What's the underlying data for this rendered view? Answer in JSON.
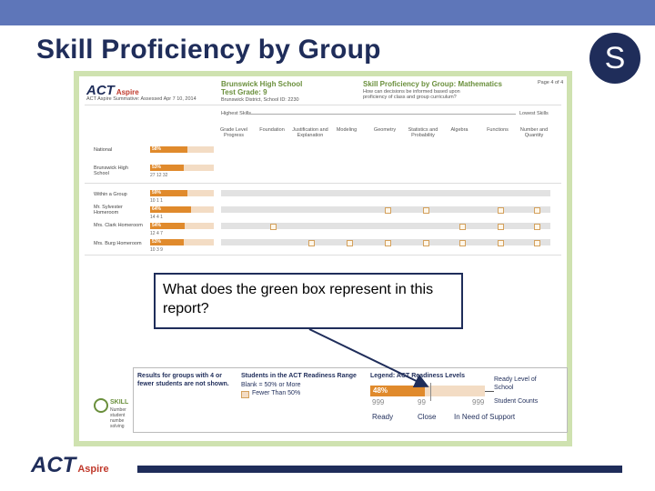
{
  "slide": {
    "title": "Skill Proficiency by Group",
    "badge_letter": "S"
  },
  "report": {
    "logo": "ACT",
    "logo_sub": "Aspire",
    "logo_line": "ACT Aspire Summative: Assessed Apr 7 10, 2014",
    "school_name": "Brunswick High School",
    "test_grade": "Test Grade: 9",
    "district_line": "Brunswick District, School ID: 2230",
    "report_title": "Skill Proficiency by Group: Mathematics",
    "report_subtitle": "How can decisions be informed based upon proficiency of class and group curriculum?",
    "page": "Page 4 of 4",
    "highest_skills": "Highest Skills",
    "lowest_skills": "Lowest Skills",
    "columns": [
      "Grade Level Progress",
      "Foundation",
      "Justification and Explanation",
      "Modeling",
      "Geometry",
      "Statistics and Probability",
      "Algebra",
      "Functions",
      "Number and Quantity"
    ],
    "rows": [
      {
        "label": "National",
        "pct": "58%",
        "level": 0.58,
        "counts": ""
      },
      {
        "label": "Brunswick High School",
        "pct": "53%",
        "level": 0.53,
        "counts": "27   12   32"
      },
      {
        "label": "Within a Group",
        "pct": "59%",
        "level": 0.59,
        "counts": "10   1   1"
      },
      {
        "label": "Mr. Sylvester Homeroom",
        "pct": "64%",
        "level": 0.64,
        "counts": "14   4   1"
      },
      {
        "label": "Mrs. Clark Homeroom",
        "pct": "54%",
        "level": 0.54,
        "counts": "12   4   7"
      },
      {
        "label": "Mrs. Burg Homeroom",
        "pct": "53%",
        "level": 0.53,
        "counts": "10   3   9"
      }
    ]
  },
  "callout": {
    "text": "What does the green box represent in this report?"
  },
  "legend": {
    "note": "Results for groups with 4 or fewer students are not shown.",
    "range_title": "Students in the ACT Readiness Range",
    "blank_label": "Blank = 50% or More",
    "fewer_label": "Fewer Than 50%",
    "levels_title": "Legend: ACT Readiness Levels",
    "ready_level": "Ready Level of School",
    "sample_pct": "48%",
    "sample_level": 0.48,
    "count_ready": "999",
    "count_close": "99",
    "count_support": "999",
    "student_counts": "Student Counts",
    "label_ready": "Ready",
    "label_close": "Close",
    "label_support": "In Need of Support"
  },
  "skill_box": {
    "heading": "SKILL",
    "lines": [
      "Number",
      "student",
      "numbe",
      "solving"
    ]
  },
  "footer": {
    "logo": "ACT",
    "logo_sub": "Aspire"
  },
  "colors": {
    "top_bar": "#5e76b9",
    "navy": "#1f2d5a",
    "report_frame": "#cfe2b0",
    "bar_fill": "#e08a2c",
    "bar_bg": "#f3dcc4"
  }
}
